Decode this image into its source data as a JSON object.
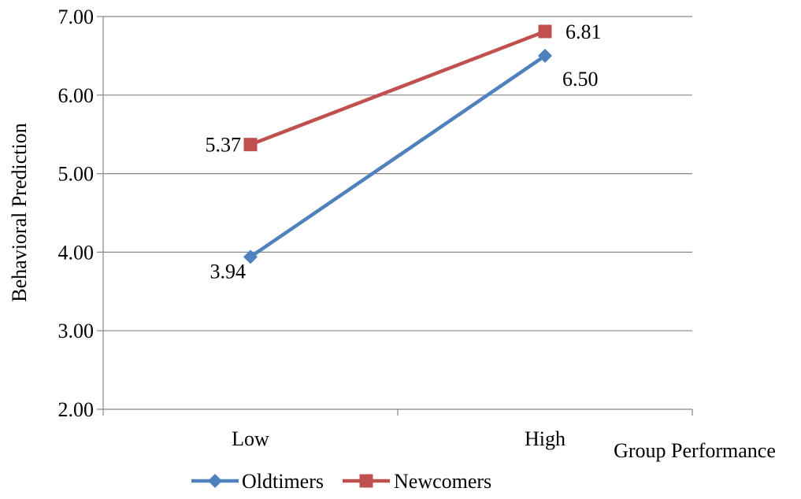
{
  "chart_data": {
    "type": "line",
    "title": "",
    "xlabel": "Group Performance",
    "ylabel": "Behavioral Prediction",
    "categories": [
      "Low",
      "High"
    ],
    "ylim": [
      2.0,
      7.0
    ],
    "yticks": [
      "2.00",
      "3.00",
      "4.00",
      "5.00",
      "6.00",
      "7.00"
    ],
    "grid": true,
    "legend_position": "bottom",
    "series": [
      {
        "name": "Oldtimers",
        "values": [
          3.94,
          6.5
        ],
        "labels": [
          "3.94",
          "6.50"
        ],
        "color": "#4F81BD",
        "marker": "diamond"
      },
      {
        "name": "Newcomers",
        "values": [
          5.37,
          6.81
        ],
        "labels": [
          "5.37",
          "6.81"
        ],
        "color": "#C0504D",
        "marker": "square"
      }
    ]
  }
}
